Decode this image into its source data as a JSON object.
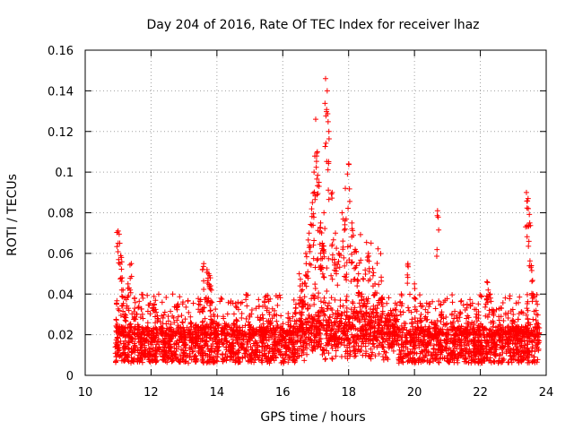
{
  "chart_data": {
    "type": "scatter",
    "title": "Day 204 of 2016, Rate Of TEC Index for receiver lhaz",
    "xlabel": "GPS time / hours",
    "ylabel": "ROTI / TECUs",
    "xlim": [
      10,
      24
    ],
    "ylim": [
      0,
      0.16
    ],
    "xticks": [
      "10",
      "12",
      "14",
      "16",
      "18",
      "20",
      "22",
      "24"
    ],
    "yticks": [
      "0",
      "0.02",
      "0.04",
      "0.06",
      "0.08",
      "0.1",
      "0.12",
      "0.14",
      "0.16"
    ],
    "grid": true,
    "marker": "plus",
    "series": [
      {
        "name": "ROTI",
        "color": "#ff0000",
        "x": [
          11.0,
          11.05,
          11.1,
          11.15,
          11.2,
          11.3,
          11.4,
          11.5,
          11.6,
          11.7,
          11.8,
          12.0,
          12.1,
          12.2,
          12.4,
          12.6,
          12.8,
          13.0,
          13.2,
          13.4,
          13.6,
          13.7,
          13.75,
          13.8,
          13.85,
          13.9,
          14.0,
          14.2,
          14.4,
          14.6,
          14.8,
          15.0,
          15.2,
          15.4,
          15.6,
          15.8,
          16.0,
          16.2,
          16.4,
          16.5,
          16.6,
          16.7,
          16.8,
          16.9,
          16.95,
          17.0,
          17.05,
          17.1,
          17.15,
          17.2,
          17.25,
          17.3,
          17.35,
          17.4,
          17.5,
          17.6,
          17.7,
          17.8,
          17.9,
          18.0,
          18.1,
          18.2,
          18.3,
          18.4,
          18.6,
          18.8,
          19.0,
          19.2,
          19.4,
          19.6,
          19.8,
          20.0,
          20.2,
          20.4,
          20.6,
          20.7,
          20.8,
          21.0,
          21.2,
          21.4,
          21.6,
          21.8,
          22.0,
          22.2,
          22.3,
          22.4,
          22.6,
          22.8,
          23.0,
          23.2,
          23.4,
          23.45,
          23.5,
          23.55,
          23.6,
          23.7
        ],
        "y": [
          0.071,
          0.065,
          0.058,
          0.042,
          0.03,
          0.045,
          0.055,
          0.038,
          0.025,
          0.018,
          0.012,
          0.022,
          0.035,
          0.028,
          0.016,
          0.02,
          0.034,
          0.015,
          0.026,
          0.018,
          0.055,
          0.052,
          0.05,
          0.048,
          0.036,
          0.03,
          0.02,
          0.028,
          0.015,
          0.022,
          0.018,
          0.025,
          0.012,
          0.02,
          0.03,
          0.016,
          0.022,
          0.028,
          0.035,
          0.05,
          0.045,
          0.06,
          0.07,
          0.085,
          0.1,
          0.126,
          0.11,
          0.095,
          0.075,
          0.065,
          0.08,
          0.146,
          0.14,
          0.12,
          0.09,
          0.07,
          0.06,
          0.08,
          0.092,
          0.104,
          0.075,
          0.062,
          0.05,
          0.04,
          0.06,
          0.045,
          0.038,
          0.03,
          0.025,
          0.04,
          0.055,
          0.045,
          0.03,
          0.02,
          0.025,
          0.081,
          0.035,
          0.018,
          0.028,
          0.022,
          0.035,
          0.02,
          0.015,
          0.046,
          0.04,
          0.032,
          0.025,
          0.018,
          0.03,
          0.022,
          0.09,
          0.087,
          0.075,
          0.054,
          0.04,
          0.03
        ],
        "note": "Dense band of thousands of points roughly between 0.005 and 0.025 across 10.9–23.8 h"
      }
    ]
  }
}
